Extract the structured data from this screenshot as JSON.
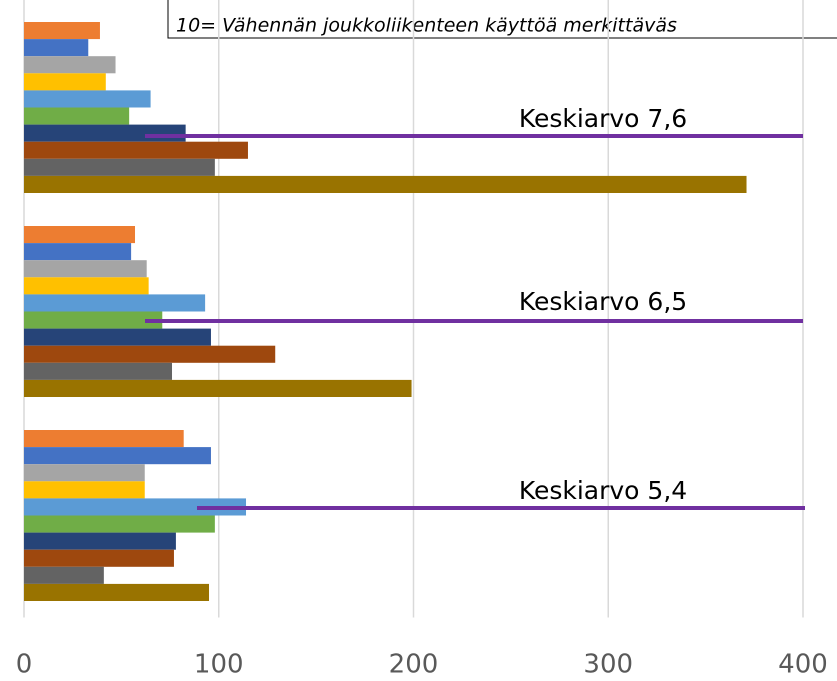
{
  "chart_data": {
    "type": "bar",
    "orientation": "horizontal",
    "subtitle": "10= Vähennän joukkoliikenteen käyttöä merkittäväs",
    "categories": [
      null,
      null,
      null
    ],
    "series": [
      {
        "color": "#ED7D31",
        "values": [
          39,
          57,
          82
        ]
      },
      {
        "color": "#4472C4",
        "values": [
          33,
          55,
          96
        ]
      },
      {
        "color": "#A5A5A5",
        "values": [
          47,
          63,
          62
        ]
      },
      {
        "color": "#FFC000",
        "values": [
          42,
          64,
          62
        ]
      },
      {
        "color": "#5B9BD5",
        "values": [
          65,
          93,
          114
        ]
      },
      {
        "color": "#70AD47",
        "values": [
          54,
          71,
          98
        ]
      },
      {
        "color": "#264478",
        "values": [
          83,
          96,
          78
        ]
      },
      {
        "color": "#9E480E",
        "values": [
          115,
          129,
          77
        ]
      },
      {
        "color": "#636363",
        "values": [
          98,
          76,
          41
        ]
      },
      {
        "color": "#997300",
        "values": [
          371,
          199,
          95
        ]
      }
    ],
    "annotations": [
      "Keskiarvo 7,6",
      "Keskiarvo 6,5",
      "Keskiarvo 5,4"
    ],
    "xlim": [
      0,
      400
    ],
    "xticks": [
      0,
      100,
      200,
      300,
      400
    ],
    "grid": true
  }
}
